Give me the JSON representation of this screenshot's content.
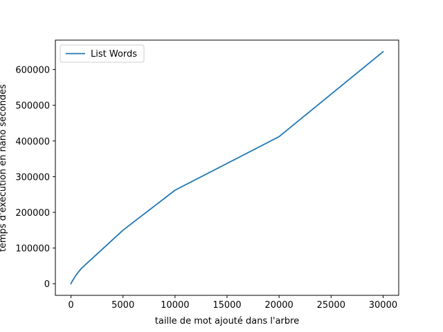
{
  "chart_data": {
    "type": "line",
    "title": "",
    "xlabel": "taille de mot ajouté dans l'arbre",
    "ylabel": "temps d'éxecution en nano secondes",
    "xlim": [
      -1500,
      31500
    ],
    "ylim": [
      -32500,
      682500
    ],
    "xticks": [
      0,
      5000,
      10000,
      15000,
      20000,
      25000,
      30000
    ],
    "yticks": [
      0,
      100000,
      200000,
      300000,
      400000,
      500000,
      600000
    ],
    "grid": false,
    "legend": "top-left",
    "series": [
      {
        "name": "List Words",
        "color": "#1f77b4",
        "x": [
          0,
          100,
          500,
          1000,
          5000,
          10000,
          20000,
          30000
        ],
        "y": [
          0,
          6000,
          25000,
          43000,
          150000,
          262000,
          412000,
          650000
        ]
      }
    ]
  }
}
